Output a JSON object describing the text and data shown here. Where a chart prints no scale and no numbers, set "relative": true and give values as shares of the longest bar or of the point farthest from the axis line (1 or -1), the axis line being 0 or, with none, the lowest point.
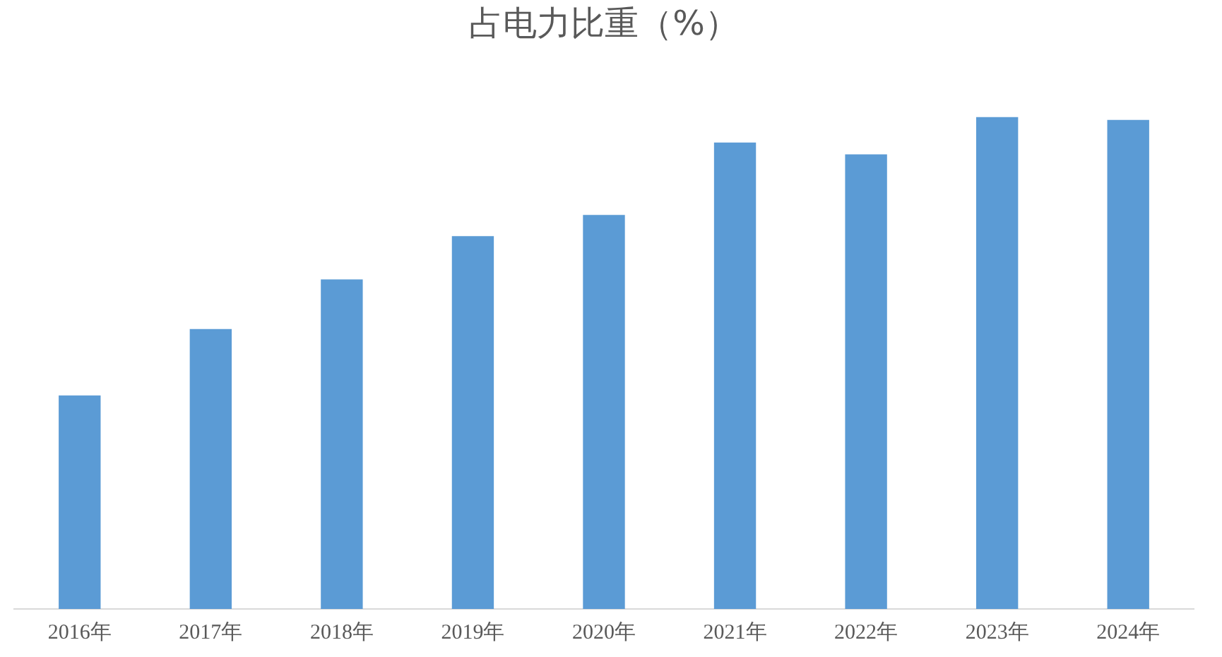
{
  "chart_data": {
    "type": "bar",
    "title": "占电力比重（%）",
    "relative": true,
    "categories": [
      "2016年",
      "2017年",
      "2018年",
      "2019年",
      "2020年",
      "2021年",
      "2022年",
      "2023年",
      "2024年"
    ],
    "values": [
      0.434,
      0.569,
      0.67,
      0.758,
      0.801,
      0.948,
      0.924,
      1,
      0.994
    ],
    "color": "#5b9bd5",
    "grid": false,
    "legend": false
  }
}
